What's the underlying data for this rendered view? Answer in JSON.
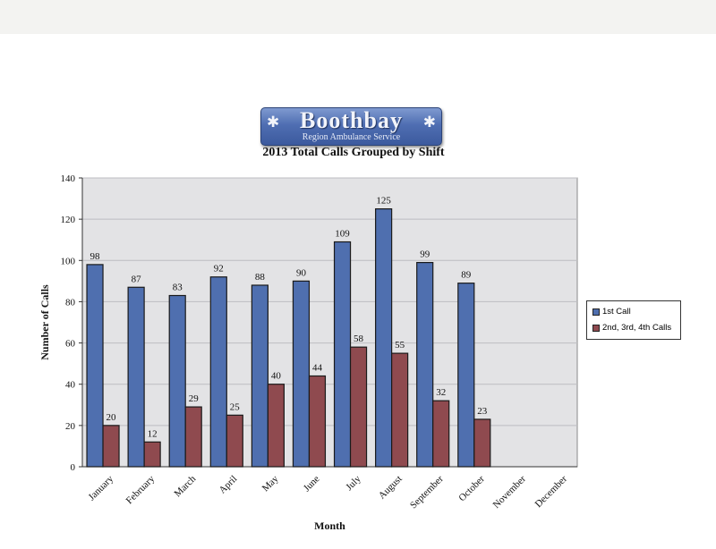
{
  "logo": {
    "name": "Boothbay",
    "subtitle": "Region Ambulance Service"
  },
  "colors": {
    "series1": "#4f6faf",
    "series2": "#8f4a4f",
    "plot_bg": "#e3e3e5",
    "grid": "#bdbdc2"
  },
  "chart_data": {
    "type": "bar",
    "title": "2013 Total Calls Grouped by Shift",
    "xlabel": "Month",
    "ylabel": "Number of Calls",
    "ylim": [
      0,
      140
    ],
    "yticks": [
      0,
      20,
      40,
      60,
      80,
      100,
      120,
      140
    ],
    "grid": true,
    "legend_position": "right",
    "categories": [
      "January",
      "February",
      "March",
      "April",
      "May",
      "June",
      "July",
      "August",
      "September",
      "October",
      "November",
      "December"
    ],
    "series": [
      {
        "name": "1st Call",
        "values": [
          98,
          87,
          83,
          92,
          88,
          90,
          109,
          125,
          99,
          89,
          null,
          null
        ]
      },
      {
        "name": "2nd, 3rd, 4th Calls",
        "values": [
          20,
          12,
          29,
          25,
          40,
          44,
          58,
          55,
          32,
          23,
          null,
          null
        ]
      }
    ]
  }
}
